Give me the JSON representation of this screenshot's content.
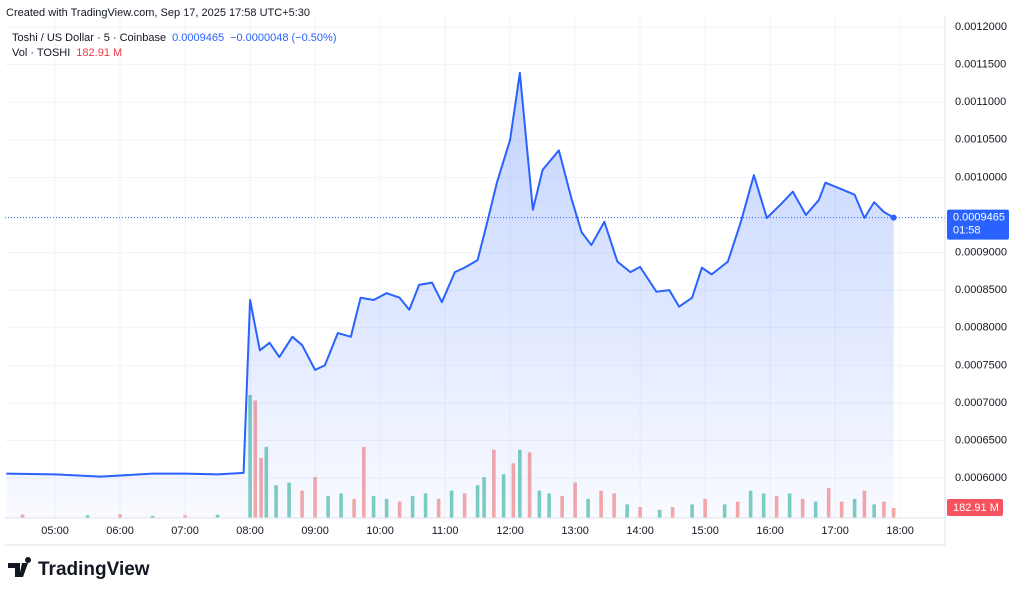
{
  "header": "Created with TradingView.com, Sep 17, 2025 17:58 UTC+5:30",
  "brand": "TradingView",
  "chart_data": {
    "type": "area",
    "title": "Toshi / US Dollar · 5 · Coinbase",
    "change_label": "−0.0000048 (−0.50%)",
    "volume_title": "Vol · TOSHI",
    "countdown": "01:58",
    "grid": true,
    "xlim": [
      4.23,
      18.69
    ],
    "xticks": [
      {
        "value": 5,
        "label": "05:00"
      },
      {
        "value": 6,
        "label": "06:00"
      },
      {
        "value": 7,
        "label": "07:00"
      },
      {
        "value": 8,
        "label": "08:00"
      },
      {
        "value": 9,
        "label": "09:00"
      },
      {
        "value": 10,
        "label": "10:00"
      },
      {
        "value": 11,
        "label": "11:00"
      },
      {
        "value": 12,
        "label": "12:00"
      },
      {
        "value": 13,
        "label": "13:00"
      },
      {
        "value": 14,
        "label": "14:00"
      },
      {
        "value": 15,
        "label": "15:00"
      },
      {
        "value": 16,
        "label": "16:00"
      },
      {
        "value": 17,
        "label": "17:00"
      },
      {
        "value": 18,
        "label": "18:00"
      }
    ],
    "ylim": [
      0.000547,
      0.001216
    ],
    "yticks": [
      {
        "value": 0.0006,
        "label": "0.0006000"
      },
      {
        "value": 0.00065,
        "label": "0.0006500"
      },
      {
        "value": 0.0007,
        "label": "0.0007000"
      },
      {
        "value": 0.00075,
        "label": "0.0007500"
      },
      {
        "value": 0.0008,
        "label": "0.0008000"
      },
      {
        "value": 0.00085,
        "label": "0.0008500"
      },
      {
        "value": 0.0009,
        "label": "0.0009000"
      },
      {
        "value": 0.001,
        "label": "0.0010000"
      },
      {
        "value": 0.00105,
        "label": "0.0010500"
      },
      {
        "value": 0.0011,
        "label": "0.0011000"
      },
      {
        "value": 0.00115,
        "label": "0.0011500"
      },
      {
        "value": 0.0012,
        "label": "0.0012000"
      }
    ],
    "y2lim": [
      0,
      9200
    ],
    "series": [
      {
        "name": "Toshi / US Dollar",
        "color": "#2962ff",
        "x": [
          4.25,
          5.0,
          5.7,
          6.5,
          7.0,
          7.5,
          7.9,
          8.0,
          8.15,
          8.3,
          8.45,
          8.65,
          8.8,
          9.0,
          9.15,
          9.35,
          9.55,
          9.7,
          9.9,
          10.1,
          10.3,
          10.45,
          10.6,
          10.8,
          10.95,
          11.15,
          11.3,
          11.5,
          11.65,
          11.8,
          12.0,
          12.15,
          12.35,
          12.5,
          12.75,
          12.95,
          13.1,
          13.25,
          13.45,
          13.65,
          13.85,
          14.0,
          14.25,
          14.45,
          14.6,
          14.8,
          14.95,
          15.1,
          15.35,
          15.55,
          15.75,
          15.95,
          16.15,
          16.35,
          16.55,
          16.75,
          16.85,
          17.05,
          17.3,
          17.45,
          17.6,
          17.75,
          17.9
        ],
        "values": [
          0.000606,
          0.000605,
          0.000602,
          0.000606,
          0.000606,
          0.000605,
          0.000607,
          0.000837,
          0.00077,
          0.00078,
          0.000761,
          0.000788,
          0.000777,
          0.000744,
          0.00075,
          0.000793,
          0.000788,
          0.00084,
          0.000837,
          0.000846,
          0.00084,
          0.000824,
          0.000857,
          0.00086,
          0.000834,
          0.000874,
          0.00088,
          0.00089,
          0.000941,
          0.000994,
          0.00105,
          0.001139,
          0.000957,
          0.00101,
          0.001036,
          0.00097,
          0.000927,
          0.00091,
          0.000941,
          0.000888,
          0.000874,
          0.000881,
          0.000848,
          0.00085,
          0.000828,
          0.00084,
          0.00088,
          0.000871,
          0.000888,
          0.000941,
          0.001003,
          0.000946,
          0.000963,
          0.000981,
          0.00095,
          0.00097,
          0.000993,
          0.000986,
          0.000977,
          0.000946,
          0.000967,
          0.000954,
          0.0009465
        ]
      },
      {
        "name": "Vol",
        "axis": "y2",
        "x": [
          4.5,
          5.5,
          6.0,
          6.5,
          7.0,
          7.5,
          8.0,
          8.08,
          8.17,
          8.25,
          8.4,
          8.6,
          8.8,
          9.0,
          9.2,
          9.4,
          9.6,
          9.75,
          9.9,
          10.1,
          10.3,
          10.5,
          10.7,
          10.9,
          11.1,
          11.3,
          11.5,
          11.6,
          11.75,
          11.9,
          12.05,
          12.15,
          12.3,
          12.45,
          12.6,
          12.8,
          13.0,
          13.2,
          13.4,
          13.6,
          13.8,
          14.0,
          14.3,
          14.5,
          14.8,
          15.0,
          15.3,
          15.5,
          15.7,
          15.9,
          16.1,
          16.3,
          16.5,
          16.7,
          16.9,
          17.1,
          17.3,
          17.45,
          17.6,
          17.75,
          17.9
        ],
        "values": [
          60,
          50,
          70,
          40,
          50,
          60,
          2250,
          2150,
          1100,
          1300,
          600,
          650,
          500,
          750,
          400,
          450,
          350,
          1300,
          400,
          350,
          300,
          400,
          450,
          350,
          500,
          450,
          600,
          750,
          1250,
          800,
          1000,
          1250,
          1200,
          500,
          450,
          400,
          650,
          350,
          500,
          450,
          250,
          200,
          150,
          200,
          250,
          350,
          250,
          300,
          500,
          450,
          400,
          450,
          350,
          300,
          550,
          300,
          350,
          500,
          250,
          300,
          182.91
        ],
        "value_labels": [
          null,
          null,
          null,
          null,
          null,
          null,
          null,
          null,
          null,
          null,
          null,
          null,
          null,
          null,
          null,
          null,
          null,
          null,
          null,
          null,
          null,
          null,
          null,
          null,
          null,
          null,
          null,
          null,
          null,
          null,
          null,
          null,
          null,
          null,
          null,
          null,
          null,
          null,
          null,
          null,
          null,
          null,
          null,
          null,
          null,
          null,
          null,
          null,
          null,
          null,
          null,
          null,
          null,
          null,
          null,
          null,
          null,
          null,
          null,
          null,
          "182.91 M"
        ],
        "colors": [
          "#f7a9a7",
          "#7dcfbf",
          "#f7a9a7",
          "#7dcfbf",
          "#f7a9a7",
          "#7dcfbf",
          "#7dcfbf",
          "#f7a9a7",
          "#f7a9a7",
          "#7dcfbf",
          "#7dcfbf",
          "#7dcfbf",
          "#f7a9a7",
          "#f7a9a7",
          "#7dcfbf",
          "#7dcfbf",
          "#f7a9a7",
          "#f7a9a7",
          "#7dcfbf",
          "#7dcfbf",
          "#f7a9a7",
          "#7dcfbf",
          "#7dcfbf",
          "#f7a9a7",
          "#7dcfbf",
          "#f7a9a7",
          "#7dcfbf",
          "#7dcfbf",
          "#f7a9a7",
          "#7dcfbf",
          "#f7a9a7",
          "#7dcfbf",
          "#f7a9a7",
          "#7dcfbf",
          "#7dcfbf",
          "#f7a9a7",
          "#f7a9a7",
          "#7dcfbf",
          "#f7a9a7",
          "#f7a9a7",
          "#7dcfbf",
          "#f7a9a7",
          "#7dcfbf",
          "#f7a9a7",
          "#7dcfbf",
          "#f7a9a7",
          "#7dcfbf",
          "#f7a9a7",
          "#7dcfbf",
          "#7dcfbf",
          "#f7a9a7",
          "#7dcfbf",
          "#f7a9a7",
          "#7dcfbf",
          "#f7a9a7",
          "#f7a9a7",
          "#7dcfbf",
          "#f7a9a7",
          "#7dcfbf",
          "#f7a9a7",
          "#f7a9a7"
        ]
      }
    ]
  }
}
